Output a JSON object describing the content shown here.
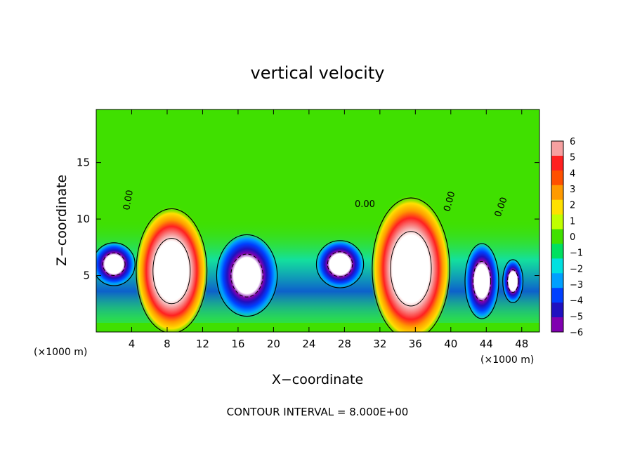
{
  "chart_data": {
    "type": "heatmap",
    "title": "vertical velocity",
    "xlabel": "X−coordinate",
    "ylabel": "Z−coordinate",
    "x_unit_left": "(×1000 m)",
    "x_unit_right": "(×1000 m)",
    "footer": "CONTOUR INTERVAL = 8.000E+00",
    "contour_labels": [
      "0.00",
      "0.00",
      "0.00",
      "0.00"
    ],
    "xlim": [
      0,
      50
    ],
    "ylim": [
      0,
      19.7
    ],
    "x_ticks": [
      4,
      8,
      12,
      16,
      20,
      24,
      28,
      32,
      36,
      40,
      44,
      48
    ],
    "x_tick_labels": [
      "4",
      "8",
      "12",
      "16",
      "20",
      "24",
      "28",
      "32",
      "36",
      "40",
      "44",
      "48"
    ],
    "y_ticks": [
      5,
      10,
      15
    ],
    "y_tick_labels": [
      "5",
      "10",
      "15"
    ],
    "colorbar": {
      "values": [
        6,
        5,
        4,
        3,
        2,
        1,
        0,
        -1,
        -2,
        -3,
        -4,
        -5,
        -6
      ],
      "labels": [
        "6",
        "5",
        "4",
        "3",
        "2",
        "1",
        "0",
        "−1",
        "−2",
        "−3",
        "−4",
        "−5",
        "−6"
      ],
      "colors": [
        "#f6a0a0",
        "#ff2020",
        "#ff5000",
        "#ff9a00",
        "#ffe000",
        "#c0ff00",
        "#40e000",
        "#00e060",
        "#00e0e0",
        "#00a0ff",
        "#0040ff",
        "#2010c0",
        "#8000b0"
      ]
    },
    "features": [
      {
        "kind": "updraft",
        "x": 8.5,
        "z": 5.4,
        "rx": 4.2,
        "rz": 5.8
      },
      {
        "kind": "updraft",
        "x": 35.5,
        "z": 5.6,
        "rx": 4.6,
        "rz": 6.6
      },
      {
        "kind": "downdraft",
        "x": 17,
        "z": 5,
        "rx": 3.6,
        "rz": 3.8
      },
      {
        "kind": "downdraft",
        "x": 2,
        "z": 6,
        "rx": 2.5,
        "rz": 2
      },
      {
        "kind": "downdraft",
        "x": 27.5,
        "z": 6,
        "rx": 2.8,
        "rz": 2.2
      },
      {
        "kind": "downdraft",
        "x": 43.5,
        "z": 4.5,
        "rx": 2,
        "rz": 3.5
      },
      {
        "kind": "downdraft",
        "x": 47,
        "z": 4.5,
        "rx": 1.2,
        "rz": 2
      }
    ]
  }
}
